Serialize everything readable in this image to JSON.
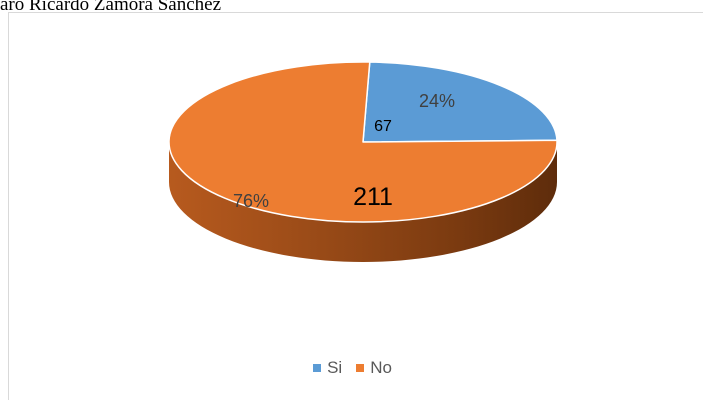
{
  "caption": "aro Ricardo Zamora Sanchez",
  "chart_data": {
    "type": "pie",
    "style": "3d",
    "title": "",
    "slices": [
      {
        "name": "Si",
        "value": 67,
        "percent_label": "24%",
        "value_label": "67",
        "color": "#5b9bd5"
      },
      {
        "name": "No",
        "value": 211,
        "percent_label": "76%",
        "value_label": "211",
        "color": "#ed7d31"
      }
    ],
    "legend": {
      "position": "bottom",
      "entries": [
        "Si",
        "No"
      ]
    }
  }
}
